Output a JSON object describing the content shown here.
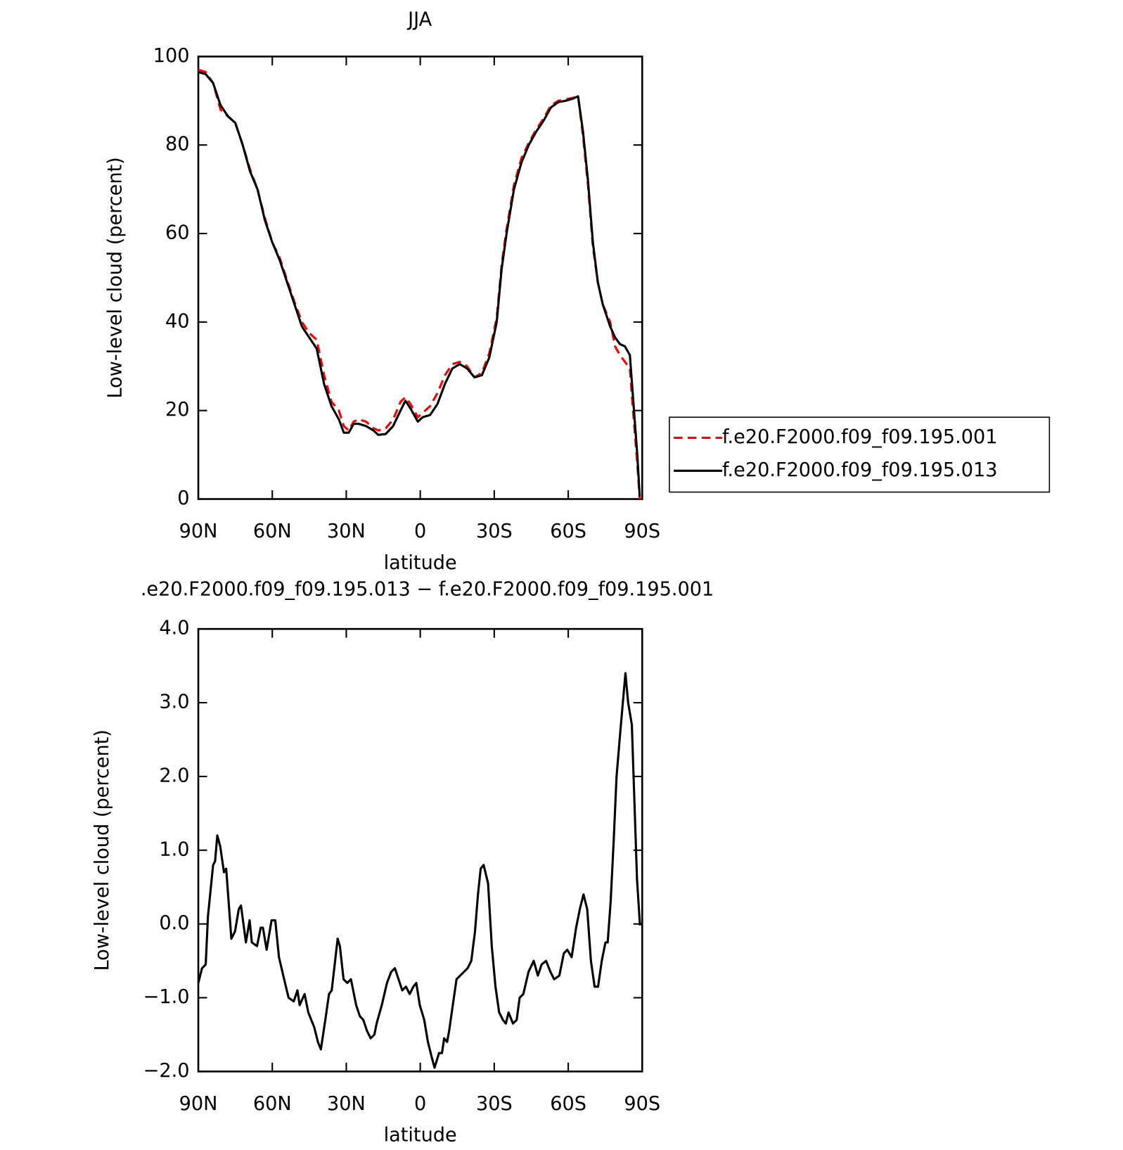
{
  "chart_data": [
    {
      "type": "line",
      "title": "JJA",
      "xlabel": "latitude",
      "ylabel": "Low-level cloud (percent)",
      "x": [
        90,
        87,
        84,
        81,
        78,
        75,
        72,
        69,
        66,
        63,
        60,
        57,
        54,
        51,
        48,
        45,
        42,
        39,
        36,
        33,
        31,
        29,
        27,
        25,
        22,
        19,
        17,
        14,
        11,
        8,
        6,
        4,
        1,
        -1,
        -4,
        -7,
        -10,
        -13,
        -16,
        -19,
        -22,
        -25,
        -28,
        -31,
        -33,
        -35,
        -38,
        -41,
        -44,
        -47,
        -50,
        -53,
        -56,
        -59,
        -62,
        -64,
        -66,
        -68,
        -70,
        -72,
        -74,
        -77,
        -79,
        -81,
        -83,
        -85,
        -86,
        -88,
        -89
      ],
      "series": [
        {
          "name": "f.e20.F2000.f09_f09.195.001",
          "color": "#ff0000",
          "style": "dashed",
          "values": [
            97,
            96.5,
            94,
            88,
            86.5,
            85,
            80,
            74.5,
            70,
            63.5,
            58,
            54.5,
            49.5,
            44.5,
            40,
            37.5,
            36,
            28,
            22,
            20,
            16.5,
            15.5,
            17.5,
            18,
            17.5,
            16,
            15.5,
            16,
            18,
            22,
            23,
            21.5,
            18.5,
            19.5,
            21,
            24,
            28,
            30.5,
            31,
            30,
            27.5,
            28.5,
            33,
            41,
            53,
            61,
            71,
            77,
            80.5,
            83.5,
            86,
            89,
            90,
            90.3,
            90.7,
            91,
            82,
            71,
            57,
            49,
            44,
            40,
            34.5,
            32.5,
            31,
            29.5,
            22,
            8,
            0
          ]
        },
        {
          "name": "f.e20.F2000.f09_f09.195.013",
          "color": "#000000",
          "style": "solid",
          "values": [
            96.5,
            96,
            94,
            89,
            86.5,
            85,
            80,
            74,
            70,
            63,
            58,
            54,
            49,
            44,
            39,
            36.5,
            34,
            26,
            21,
            18,
            15,
            15,
            17,
            17,
            16.5,
            15.5,
            14.5,
            14.7,
            16.5,
            20,
            22.2,
            20.5,
            17.5,
            18.5,
            19,
            21.5,
            26,
            29.5,
            30.5,
            29.5,
            27.5,
            28,
            32,
            40,
            52,
            60,
            70,
            76,
            80,
            83,
            85.5,
            88.5,
            89.7,
            90,
            90.5,
            91,
            83,
            72,
            58,
            49,
            44,
            39,
            36.5,
            35,
            34.5,
            32.5,
            25,
            10,
            0.5
          ]
        }
      ],
      "xlim": [
        90,
        -90
      ],
      "xticks": [
        {
          "value": 90,
          "label": "90N"
        },
        {
          "value": 60,
          "label": "60N"
        },
        {
          "value": 30,
          "label": "30N"
        },
        0,
        {
          "value": -30,
          "label": "30S"
        },
        {
          "value": -60,
          "label": "60S"
        },
        {
          "value": -90,
          "label": "90S"
        }
      ],
      "ylim": [
        0,
        100
      ],
      "yticks": [
        0,
        20,
        40,
        60,
        80,
        100
      ],
      "legend": "right"
    },
    {
      "type": "line",
      "title": ".e20.F2000.f09_f09.195.013 − f.e20.F2000.f09_f09.195.001",
      "xlabel": "latitude",
      "ylabel": "Low-level cloud (percent)",
      "x": [
        90,
        88.5,
        87.0,
        86.1,
        84.0,
        83.2,
        82.3,
        81.1,
        79.6,
        78.7,
        76.6,
        75.1,
        73.6,
        72.7,
        70.7,
        69.2,
        68.3,
        66.2,
        64.7,
        63.8,
        62.3,
        60.3,
        58.8,
        57.3,
        55.2,
        53.4,
        51.3,
        49.8,
        48.9,
        46.9,
        45.4,
        43.0,
        41.5,
        40.3,
        38.5,
        37.0,
        35.9,
        33.5,
        32.6,
        31.1,
        29.6,
        28.1,
        26.0,
        24.5,
        23.1,
        21.6,
        20.1,
        18.6,
        17.7,
        15.6,
        13.5,
        11.8,
        10.3,
        8.8,
        7.3,
        5.8,
        4.3,
        2.8,
        1.6,
        0.2,
        -1.6,
        -3.1,
        -4.6,
        -5.8,
        -7.6,
        -8.8,
        -9.7,
        -10.9,
        -11.7,
        -13.2,
        -14.7,
        -16.2,
        -17.7,
        -19.2,
        -20.7,
        -22.2,
        -23.4,
        -24.5,
        -25.7,
        -27.5,
        -29.0,
        -30.5,
        -32.0,
        -33.5,
        -34.7,
        -35.8,
        -37.6,
        -39.1,
        -40.3,
        -41.8,
        -43.9,
        -46.0,
        -47.7,
        -49.2,
        -51.0,
        -52.8,
        -54.3,
        -56.4,
        -58.2,
        -59.6,
        -61.4,
        -63.2,
        -64.7,
        -66.2,
        -67.7,
        -69.2,
        -70.7,
        -72.1,
        -73.6,
        -75.1,
        -76.0,
        -77.2,
        -78.4,
        -79.6,
        -81.1,
        -83.2,
        -84.3,
        -85.8,
        -86.7,
        -87.9,
        -89.1
      ],
      "series": [
        {
          "name": null,
          "color": "#000000",
          "style": "solid",
          "values": [
            -0.8,
            -0.6,
            -0.55,
            0.1,
            0.8,
            0.85,
            1.2,
            1.05,
            0.7,
            0.75,
            -0.2,
            -0.1,
            0.2,
            0.25,
            -0.25,
            0.05,
            -0.25,
            -0.3,
            -0.05,
            -0.05,
            -0.35,
            0.05,
            0.05,
            -0.45,
            -0.75,
            -1.0,
            -1.05,
            -0.9,
            -1.1,
            -0.95,
            -1.2,
            -1.4,
            -1.6,
            -1.7,
            -1.3,
            -0.95,
            -0.9,
            -0.2,
            -0.3,
            -0.75,
            -0.8,
            -0.75,
            -1.1,
            -1.25,
            -1.3,
            -1.45,
            -1.55,
            -1.5,
            -1.35,
            -1.1,
            -0.8,
            -0.65,
            -0.6,
            -0.75,
            -0.9,
            -0.85,
            -0.95,
            -0.85,
            -0.8,
            -1.1,
            -1.3,
            -1.6,
            -1.8,
            -1.95,
            -1.75,
            -1.75,
            -1.55,
            -1.6,
            -1.45,
            -1.1,
            -0.75,
            -0.7,
            -0.65,
            -0.6,
            -0.5,
            -0.1,
            0.4,
            0.75,
            0.8,
            0.55,
            -0.3,
            -0.85,
            -1.2,
            -1.3,
            -1.35,
            -1.2,
            -1.35,
            -1.3,
            -1.0,
            -0.95,
            -0.65,
            -0.5,
            -0.7,
            -0.55,
            -0.5,
            -0.65,
            -0.75,
            -0.7,
            -0.4,
            -0.35,
            -0.45,
            -0.05,
            0.2,
            0.4,
            0.2,
            -0.5,
            -0.85,
            -0.85,
            -0.5,
            -0.25,
            -0.25,
            0.3,
            1.1,
            2.0,
            2.6,
            3.4,
            3.0,
            2.7,
            1.8,
            0.6,
            -0.02
          ]
        }
      ],
      "xlim": [
        90,
        -90
      ],
      "xticks": [
        {
          "value": 90,
          "label": "90N"
        },
        {
          "value": 60,
          "label": "60N"
        },
        {
          "value": 30,
          "label": "30N"
        },
        0,
        {
          "value": -30,
          "label": "30S"
        },
        {
          "value": -60,
          "label": "60S"
        },
        {
          "value": -90,
          "label": "90S"
        }
      ],
      "ylim": [
        -2,
        4
      ],
      "yticks": [
        {
          "value": -2,
          "label": "−2.0"
        },
        {
          "value": -1,
          "label": "−1.0"
        },
        {
          "value": 0,
          "label": "0.0"
        },
        {
          "value": 1,
          "label": "1.0"
        },
        {
          "value": 2,
          "label": "2.0"
        },
        {
          "value": 3,
          "label": "3.0"
        },
        {
          "value": 4,
          "label": "4.0"
        }
      ]
    }
  ]
}
